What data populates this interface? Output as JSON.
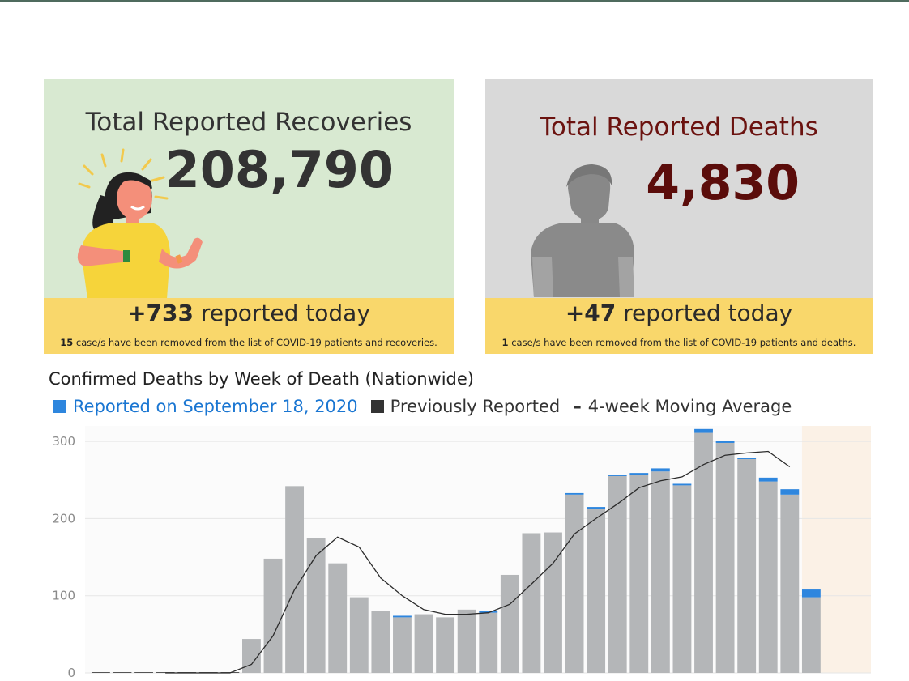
{
  "recoveries": {
    "title": "Total Reported Recoveries",
    "total": "208,790",
    "today_value": "+733",
    "today_text": " reported today",
    "removed_count": "15",
    "removed_text": " case/s have been removed from the list of COVID-19 patients and recoveries."
  },
  "deaths": {
    "title": "Total Reported Deaths",
    "total": "4,830",
    "today_value": "+47",
    "today_text": " reported today",
    "removed_count": "1",
    "removed_text": " case/s have been removed from the list of COVID-19 patients and deaths."
  },
  "colors": {
    "recoveries_bg": "#d8e9d1",
    "deaths_bg": "#d9d9d9",
    "strip": "#f9d76b",
    "bar_previous": "#b4b6b8",
    "bar_new": "#2e86de",
    "death_text": "#5b0d0b"
  },
  "chart_data": {
    "type": "bar",
    "title": "Confirmed Deaths by Week of Death (Nationwide)",
    "legend": [
      {
        "name": "Reported on September 18, 2020",
        "color": "#2e86de"
      },
      {
        "name": "Previously Reported",
        "color": "#333333"
      },
      {
        "name": "4-week Moving Average",
        "marker": "–"
      }
    ],
    "yticks": [
      0,
      100,
      200,
      300
    ],
    "ylim": [
      0,
      320
    ],
    "grid": true,
    "series": [
      {
        "name": "Previously Reported",
        "values": [
          0,
          0,
          0,
          0,
          0,
          0,
          0,
          44,
          148,
          242,
          175,
          142,
          98,
          80,
          72,
          76,
          72,
          82,
          78,
          127,
          181,
          182,
          231,
          212,
          255,
          257,
          261,
          243,
          311,
          298,
          277,
          248,
          231,
          98
        ]
      },
      {
        "name": "Reported on September 18, 2020",
        "values": [
          0,
          0,
          0,
          0,
          0,
          0,
          0,
          0,
          0,
          0,
          0,
          0,
          0,
          0,
          2,
          0,
          0,
          0,
          2,
          0,
          0,
          0,
          2,
          3,
          2,
          2,
          4,
          2,
          5,
          3,
          2,
          5,
          7,
          10
        ]
      },
      {
        "name": "4-week Moving Average",
        "values": [
          null,
          null,
          null,
          0,
          0,
          0,
          0,
          11,
          48,
          108,
          152,
          176,
          163,
          123,
          100,
          82,
          76,
          76,
          78,
          89,
          115,
          142,
          180,
          200,
          219,
          240,
          249,
          254,
          270,
          282,
          285,
          287,
          267,
          null
        ]
      }
    ],
    "shaded_last_weeks": 3
  }
}
